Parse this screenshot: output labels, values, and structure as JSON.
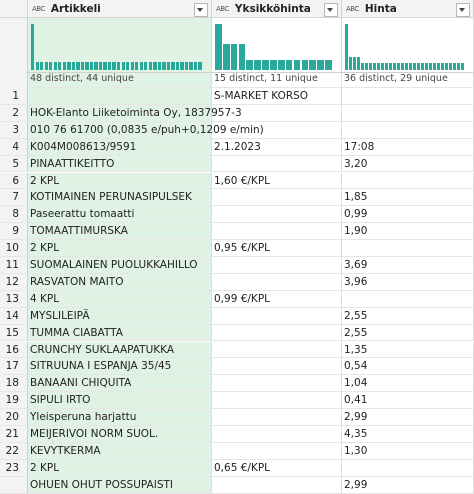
{
  "columns": [
    {
      "name": "Artikkeli",
      "type_icon": "ABC",
      "profile_summary": "48 distinct, 44 unique",
      "profile_bars": [
        6,
        1,
        1,
        1,
        1,
        1,
        1,
        1,
        1,
        1,
        1,
        1,
        1,
        1,
        1,
        1,
        1,
        1,
        1,
        1,
        1,
        1,
        1,
        1,
        1,
        1,
        1,
        1,
        1,
        1,
        1,
        1,
        1,
        1,
        1,
        1,
        1,
        1
      ]
    },
    {
      "name": "Yksikköhinta",
      "type_icon": "ABC",
      "profile_summary": "15 distinct, 11 unique",
      "profile_bars": [
        9,
        5,
        5,
        5,
        2,
        2,
        2,
        2,
        2,
        2,
        2,
        2,
        2,
        2,
        2
      ]
    },
    {
      "name": "Hinta",
      "type_icon": "ABC",
      "profile_summary": "36 distinct, 29 unique",
      "profile_bars": [
        7,
        2,
        2,
        2,
        1,
        1,
        1,
        1,
        1,
        1,
        1,
        1,
        1,
        1,
        1,
        1,
        1,
        1,
        1,
        1,
        1,
        1,
        1,
        1,
        1,
        1,
        1,
        1,
        1,
        1
      ]
    }
  ],
  "rows": [
    {
      "number": 1,
      "cells": [
        null,
        "S-MARKET KORSO",
        null
      ]
    },
    {
      "number": 2,
      "cells": [
        "HOK-Elanto Liiketoiminta Oy, 1837957-3",
        null,
        null
      ]
    },
    {
      "number": 3,
      "cells": [
        "010 76 61700 (0,0835 e/puh+0,1209 e/min)",
        null,
        null
      ]
    },
    {
      "number": 4,
      "cells": [
        "K004M008613/9591",
        "2.1.2023",
        "17:08"
      ]
    },
    {
      "number": 5,
      "cells": [
        "PINAATTIKEITTO",
        null,
        "3,20"
      ]
    },
    {
      "number": 6,
      "cells": [
        "2 KPL",
        "1,60 €/KPL",
        null
      ]
    },
    {
      "number": 7,
      "cells": [
        "KOTIMAINEN PERUNASIPULSEK",
        null,
        "1,85"
      ]
    },
    {
      "number": 8,
      "cells": [
        "Paseerattu tomaatti",
        null,
        "0,99"
      ]
    },
    {
      "number": 9,
      "cells": [
        "TOMAATTIMURSKA",
        null,
        "1,90"
      ]
    },
    {
      "number": 10,
      "cells": [
        "2 KPL",
        "0,95 €/KPL",
        null
      ]
    },
    {
      "number": 11,
      "cells": [
        "SUOMALAINEN PUOLUKKAHILLO",
        null,
        "3,69"
      ]
    },
    {
      "number": 12,
      "cells": [
        "RASVATON MAITO",
        null,
        "3,96"
      ]
    },
    {
      "number": 13,
      "cells": [
        "4 KPL",
        "0,99 €/KPL",
        null
      ]
    },
    {
      "number": 14,
      "cells": [
        "MYSLILEIPÄ",
        null,
        "2,55"
      ]
    },
    {
      "number": 15,
      "cells": [
        "TUMMA CIABATTA",
        null,
        "2,55"
      ]
    },
    {
      "number": 16,
      "cells": [
        "CRUNCHY SUKLAAPATUKKA",
        null,
        "1,35"
      ]
    },
    {
      "number": 17,
      "cells": [
        "SITRUUNA I ESPANJA 35/45",
        null,
        "0,54"
      ]
    },
    {
      "number": 18,
      "cells": [
        "BANAANI CHIQUITA",
        null,
        "1,04"
      ]
    },
    {
      "number": 19,
      "cells": [
        "SIPULI IRTO",
        null,
        "0,41"
      ]
    },
    {
      "number": 20,
      "cells": [
        "Yleisperuna harjattu",
        null,
        "2,99"
      ]
    },
    {
      "number": 21,
      "cells": [
        "MEIJERIVOI NORM SUOL.",
        null,
        "4,35"
      ]
    },
    {
      "number": 22,
      "cells": [
        "KEVYTKERMA",
        null,
        "1,30"
      ]
    },
    {
      "number": 23,
      "cells": [
        "2 KPL",
        "0,65 €/KPL",
        null
      ]
    },
    {
      "number": null,
      "cells": [
        "OHUEN OHUT POSSUPAISTI",
        null,
        "2,99"
      ]
    }
  ]
}
